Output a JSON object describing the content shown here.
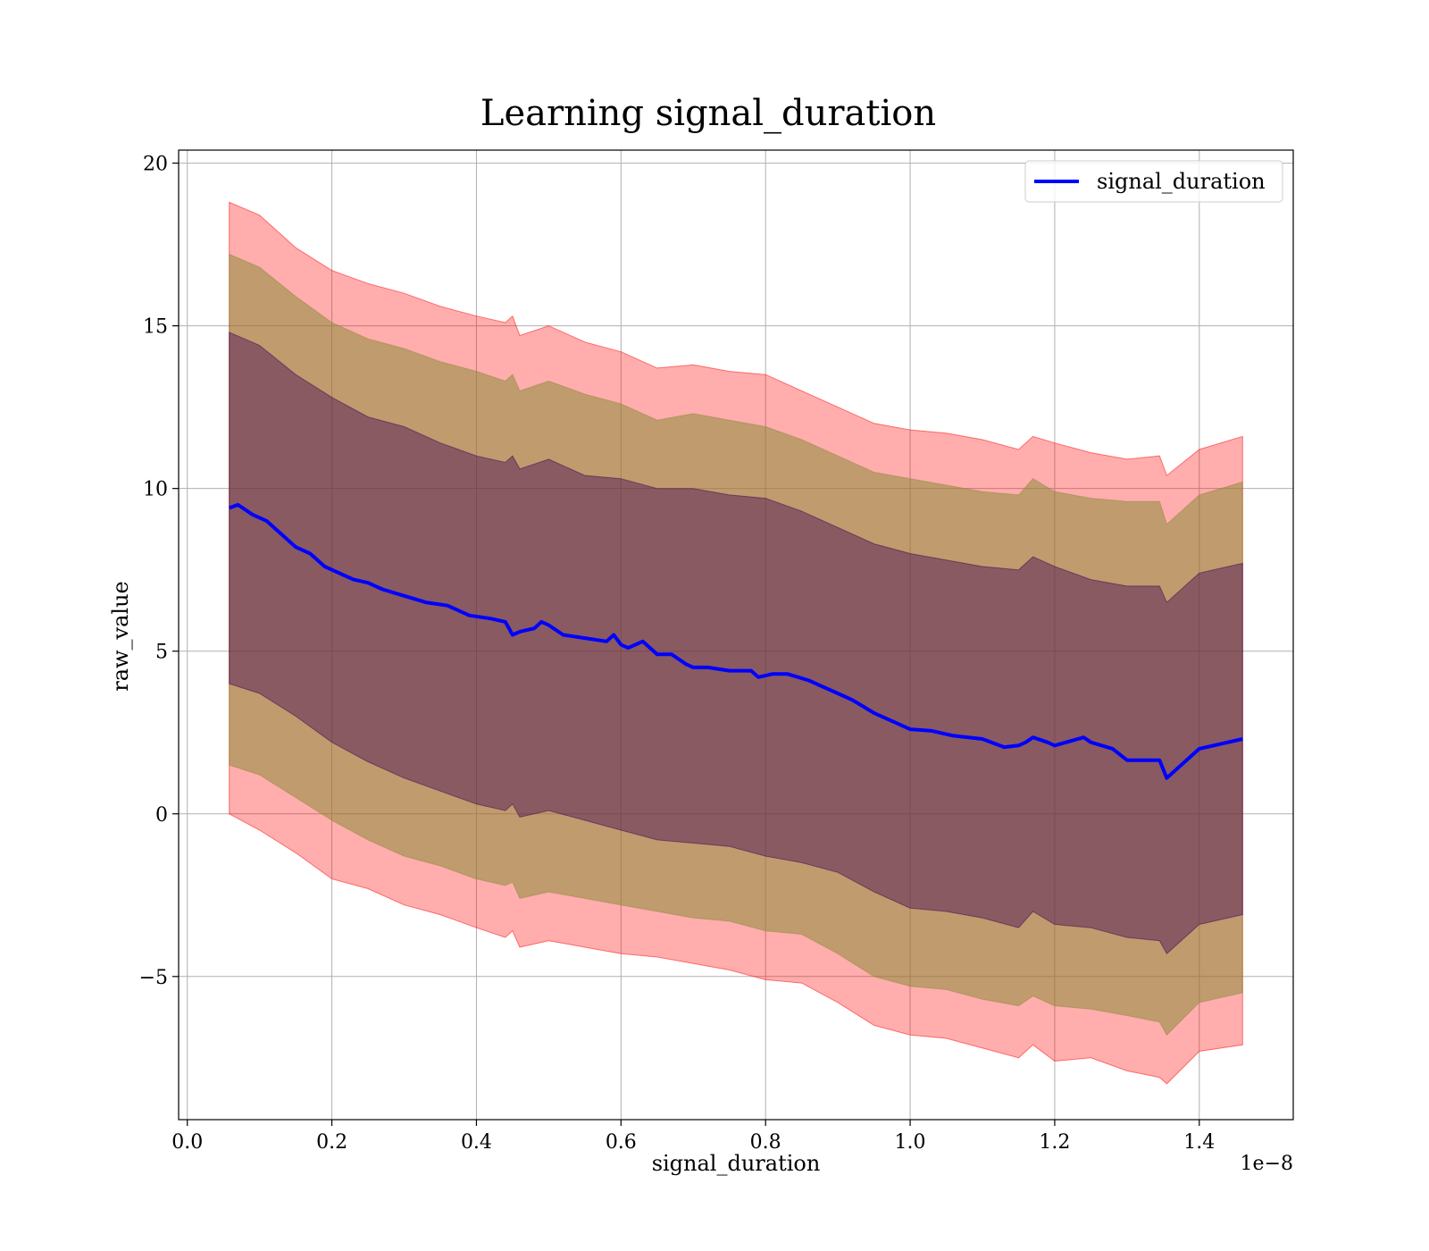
{
  "chart_data": {
    "type": "line",
    "title": "Learning signal_duration",
    "xlabel": "signal_duration",
    "ylabel": "raw_value",
    "x_offset_label": "1e−8",
    "xlim": [
      -0.012,
      1.53
    ],
    "ylim": [
      -9.4,
      20.4
    ],
    "x_ticks": [
      0.0,
      0.2,
      0.4,
      0.6,
      0.8,
      1.0,
      1.2,
      1.4
    ],
    "x_tick_labels": [
      "0.0",
      "0.2",
      "0.4",
      "0.6",
      "0.8",
      "1.0",
      "1.2",
      "1.4"
    ],
    "y_ticks": [
      -5,
      0,
      5,
      10,
      15,
      20
    ],
    "y_tick_labels": [
      "−5",
      "0",
      "5",
      "10",
      "15",
      "20"
    ],
    "grid": true,
    "legend_position": "top-right",
    "series": [
      {
        "name": "signal_duration",
        "color": "#0000ff",
        "x": [
          0.058,
          0.07,
          0.09,
          0.11,
          0.13,
          0.15,
          0.17,
          0.19,
          0.21,
          0.23,
          0.25,
          0.27,
          0.3,
          0.33,
          0.36,
          0.39,
          0.42,
          0.44,
          0.45,
          0.46,
          0.48,
          0.49,
          0.5,
          0.52,
          0.55,
          0.58,
          0.59,
          0.6,
          0.61,
          0.63,
          0.65,
          0.67,
          0.69,
          0.7,
          0.72,
          0.75,
          0.78,
          0.79,
          0.81,
          0.83,
          0.86,
          0.88,
          0.9,
          0.92,
          0.95,
          0.98,
          1.0,
          1.03,
          1.06,
          1.1,
          1.13,
          1.15,
          1.16,
          1.17,
          1.19,
          1.2,
          1.24,
          1.25,
          1.28,
          1.3,
          1.345,
          1.355,
          1.4,
          1.46
        ],
        "y": [
          9.4,
          9.5,
          9.2,
          9.0,
          8.6,
          8.2,
          8.0,
          7.6,
          7.4,
          7.2,
          7.1,
          6.9,
          6.7,
          6.5,
          6.4,
          6.1,
          6.0,
          5.9,
          5.5,
          5.6,
          5.7,
          5.9,
          5.8,
          5.5,
          5.4,
          5.3,
          5.5,
          5.2,
          5.1,
          5.3,
          4.9,
          4.9,
          4.6,
          4.5,
          4.5,
          4.4,
          4.4,
          4.2,
          4.3,
          4.3,
          4.1,
          3.9,
          3.7,
          3.5,
          3.1,
          2.8,
          2.6,
          2.55,
          2.4,
          2.3,
          2.05,
          2.1,
          2.2,
          2.35,
          2.2,
          2.1,
          2.35,
          2.2,
          2.0,
          1.65,
          1.65,
          1.1,
          2.0,
          2.3
        ]
      }
    ],
    "bands": [
      {
        "color": "#ff0000",
        "opacity": 0.32,
        "x": [
          0.058,
          0.1,
          0.15,
          0.2,
          0.25,
          0.3,
          0.35,
          0.4,
          0.44,
          0.45,
          0.46,
          0.5,
          0.55,
          0.6,
          0.65,
          0.7,
          0.75,
          0.8,
          0.85,
          0.9,
          0.95,
          1.0,
          1.05,
          1.1,
          1.15,
          1.17,
          1.2,
          1.25,
          1.3,
          1.345,
          1.355,
          1.4,
          1.46
        ],
        "upper": [
          18.8,
          18.4,
          17.4,
          16.7,
          16.3,
          16.0,
          15.6,
          15.3,
          15.1,
          15.3,
          14.7,
          15.0,
          14.5,
          14.2,
          13.7,
          13.8,
          13.6,
          13.5,
          13.0,
          12.5,
          12.0,
          11.8,
          11.7,
          11.5,
          11.2,
          11.6,
          11.4,
          11.1,
          10.9,
          11.0,
          10.4,
          11.2,
          11.6
        ],
        "lower": [
          0.0,
          -0.5,
          -1.2,
          -2.0,
          -2.3,
          -2.8,
          -3.1,
          -3.5,
          -3.8,
          -3.6,
          -4.1,
          -3.9,
          -4.1,
          -4.3,
          -4.4,
          -4.6,
          -4.8,
          -5.1,
          -5.2,
          -5.8,
          -6.5,
          -6.8,
          -6.9,
          -7.2,
          -7.5,
          -7.1,
          -7.6,
          -7.5,
          -7.9,
          -8.1,
          -8.3,
          -7.3,
          -7.1
        ]
      },
      {
        "color": "#8c8c3a",
        "opacity": 0.55,
        "x": [
          0.058,
          0.1,
          0.15,
          0.2,
          0.25,
          0.3,
          0.35,
          0.4,
          0.44,
          0.45,
          0.46,
          0.5,
          0.55,
          0.6,
          0.65,
          0.7,
          0.75,
          0.8,
          0.85,
          0.9,
          0.95,
          1.0,
          1.05,
          1.1,
          1.15,
          1.17,
          1.2,
          1.25,
          1.3,
          1.345,
          1.355,
          1.4,
          1.46
        ],
        "upper": [
          17.2,
          16.8,
          15.9,
          15.1,
          14.6,
          14.3,
          13.9,
          13.6,
          13.3,
          13.5,
          13.0,
          13.3,
          12.9,
          12.6,
          12.1,
          12.3,
          12.1,
          11.9,
          11.5,
          11.0,
          10.5,
          10.3,
          10.1,
          9.9,
          9.8,
          10.3,
          9.9,
          9.7,
          9.6,
          9.6,
          8.9,
          9.8,
          10.2
        ],
        "lower": [
          1.5,
          1.2,
          0.5,
          -0.2,
          -0.8,
          -1.3,
          -1.6,
          -2.0,
          -2.2,
          -2.1,
          -2.6,
          -2.4,
          -2.6,
          -2.8,
          -3.0,
          -3.2,
          -3.3,
          -3.6,
          -3.7,
          -4.3,
          -5.0,
          -5.3,
          -5.4,
          -5.7,
          -5.9,
          -5.6,
          -5.9,
          -6.0,
          -6.2,
          -6.4,
          -6.8,
          -5.8,
          -5.5
        ]
      },
      {
        "color": "#3f0050",
        "opacity": 0.42,
        "x": [
          0.058,
          0.1,
          0.15,
          0.2,
          0.25,
          0.3,
          0.35,
          0.4,
          0.44,
          0.45,
          0.46,
          0.5,
          0.55,
          0.6,
          0.65,
          0.7,
          0.75,
          0.8,
          0.85,
          0.9,
          0.95,
          1.0,
          1.05,
          1.1,
          1.15,
          1.17,
          1.2,
          1.25,
          1.3,
          1.345,
          1.355,
          1.4,
          1.46
        ],
        "upper": [
          14.8,
          14.4,
          13.5,
          12.8,
          12.2,
          11.9,
          11.4,
          11.0,
          10.8,
          11.0,
          10.6,
          10.9,
          10.4,
          10.3,
          10.0,
          10.0,
          9.8,
          9.7,
          9.3,
          8.8,
          8.3,
          8.0,
          7.8,
          7.6,
          7.5,
          7.9,
          7.6,
          7.2,
          7.0,
          7.0,
          6.5,
          7.4,
          7.7
        ],
        "lower": [
          4.0,
          3.7,
          3.0,
          2.2,
          1.6,
          1.1,
          0.7,
          0.3,
          0.1,
          0.3,
          -0.1,
          0.1,
          -0.2,
          -0.5,
          -0.8,
          -0.9,
          -1.0,
          -1.3,
          -1.5,
          -1.8,
          -2.4,
          -2.9,
          -3.0,
          -3.2,
          -3.5,
          -3.0,
          -3.4,
          -3.5,
          -3.8,
          -3.9,
          -4.3,
          -3.4,
          -3.1
        ]
      }
    ]
  }
}
